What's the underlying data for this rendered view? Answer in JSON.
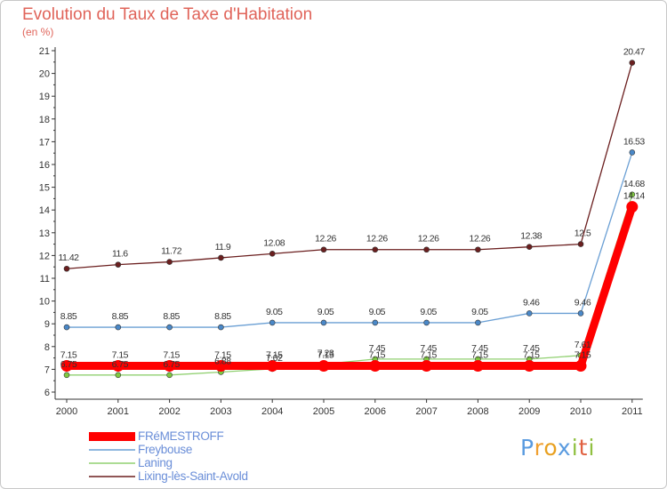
{
  "title": "Evolution du Taux de Taxe d'Habitation",
  "subtitle": "(en %)",
  "logo_text": "Proxiti",
  "chart_data": {
    "type": "line",
    "title": "Evolution du Taux de Taxe d'Habitation",
    "subtitle": "(en %)",
    "x": [
      "2000",
      "2001",
      "2002",
      "2003",
      "2004",
      "2005",
      "2006",
      "2007",
      "2008",
      "2009",
      "2010",
      "2011"
    ],
    "ylim": [
      6,
      21
    ],
    "yticks": [
      "6",
      "7",
      "8",
      "9",
      "10",
      "11",
      "12",
      "13",
      "14",
      "15",
      "16",
      "17",
      "18",
      "19",
      "20",
      "21"
    ],
    "grid": false,
    "legend_position": "bottom-left",
    "series": [
      {
        "name": "FRéMESTROFF",
        "color": "#ff0000",
        "values": [
          7.15,
          7.15,
          7.15,
          7.15,
          7.15,
          7.15,
          7.15,
          7.15,
          7.15,
          7.15,
          7.15,
          14.14
        ],
        "labels": [
          "7.15",
          "7.15",
          "7.15",
          "7.15",
          "7.15",
          "7.15",
          "7.15",
          "7.15",
          "7.15",
          "7.15",
          "7.15",
          "14.14"
        ]
      },
      {
        "name": "Freybouse",
        "color": "#6a9fd4",
        "values": [
          8.85,
          8.85,
          8.85,
          8.85,
          9.05,
          9.05,
          9.05,
          9.05,
          9.05,
          9.46,
          9.46,
          16.53
        ],
        "labels": [
          "8.85",
          "8.85",
          "8.85",
          "8.85",
          "9.05",
          "9.05",
          "9.05",
          "9.05",
          "9.05",
          "9.46",
          "9.46",
          "16.53"
        ]
      },
      {
        "name": "Laning",
        "color": "#90d070",
        "values": [
          6.75,
          6.75,
          6.75,
          6.88,
          7.02,
          7.23,
          7.45,
          7.45,
          7.45,
          7.45,
          7.61,
          14.68
        ],
        "labels": [
          "6.75",
          "6.75",
          "6.75",
          "6.88",
          "7.02",
          "7.23",
          "7.45",
          "7.45",
          "7.45",
          "7.45",
          "7.61",
          "14.68"
        ]
      },
      {
        "name": "Lixing-lès-Saint-Avold",
        "color": "#6b1f1f",
        "values": [
          11.42,
          11.6,
          11.72,
          11.9,
          12.08,
          12.26,
          12.26,
          12.26,
          12.26,
          12.38,
          12.5,
          20.47
        ],
        "labels": [
          "11.42",
          "11.6",
          "11.72",
          "11.9",
          "12.08",
          "12.26",
          "12.26",
          "12.26",
          "12.26",
          "12.38",
          "12.5",
          "20.47"
        ]
      }
    ]
  }
}
